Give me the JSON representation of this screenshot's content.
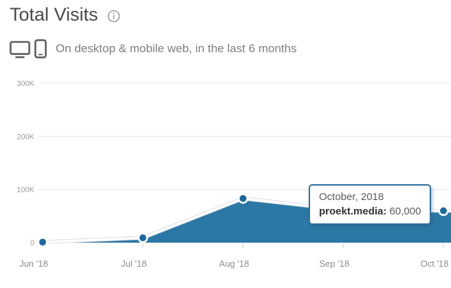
{
  "header": {
    "title": "Total Visits",
    "subtitle": "On desktop & mobile web, in the last 6 months"
  },
  "tooltip": {
    "title": "October, 2018",
    "series_label": "proekt.media:",
    "value": "60,000"
  },
  "chart_data": {
    "type": "area",
    "title": "Total Visits",
    "categories": [
      "Jun '18",
      "Jul '18",
      "Aug '18",
      "Sep '18",
      "Oct '18"
    ],
    "series": [
      {
        "name": "proekt.media",
        "values": [
          1000,
          9000,
          83000,
          62000,
          60000
        ]
      }
    ],
    "xlabel": "",
    "ylabel": "",
    "ylim": [
      0,
      300000
    ],
    "y_ticks": [
      {
        "value": 0,
        "label": "0"
      },
      {
        "value": 100000,
        "label": "100K"
      },
      {
        "value": 200000,
        "label": "200K"
      },
      {
        "value": 300000,
        "label": "300K"
      }
    ],
    "grid": true,
    "legend_position": "none",
    "highlighted_point": {
      "category": "Oct '18",
      "value": 60000
    }
  },
  "colors": {
    "area_fill": "#2b78a7",
    "line": "#ffffff",
    "line_shadow": "#dcdcdc",
    "dot": "#1a699e",
    "dot_ring": "#ffffff",
    "gridline": "#e7e7e7",
    "tick": "#c9c9c9",
    "axis_label": "#9b9b9b",
    "x_label": "#8c8c8c",
    "title_text": "#4a4a4a",
    "subtitle_text": "#7e7e7e",
    "tooltip_border": "#2b6f9c",
    "tooltip_text": "#5a5a5a",
    "tooltip_strong": "#333333",
    "icon": "#5c5c5c",
    "info_icon": "#9a9a9a"
  }
}
